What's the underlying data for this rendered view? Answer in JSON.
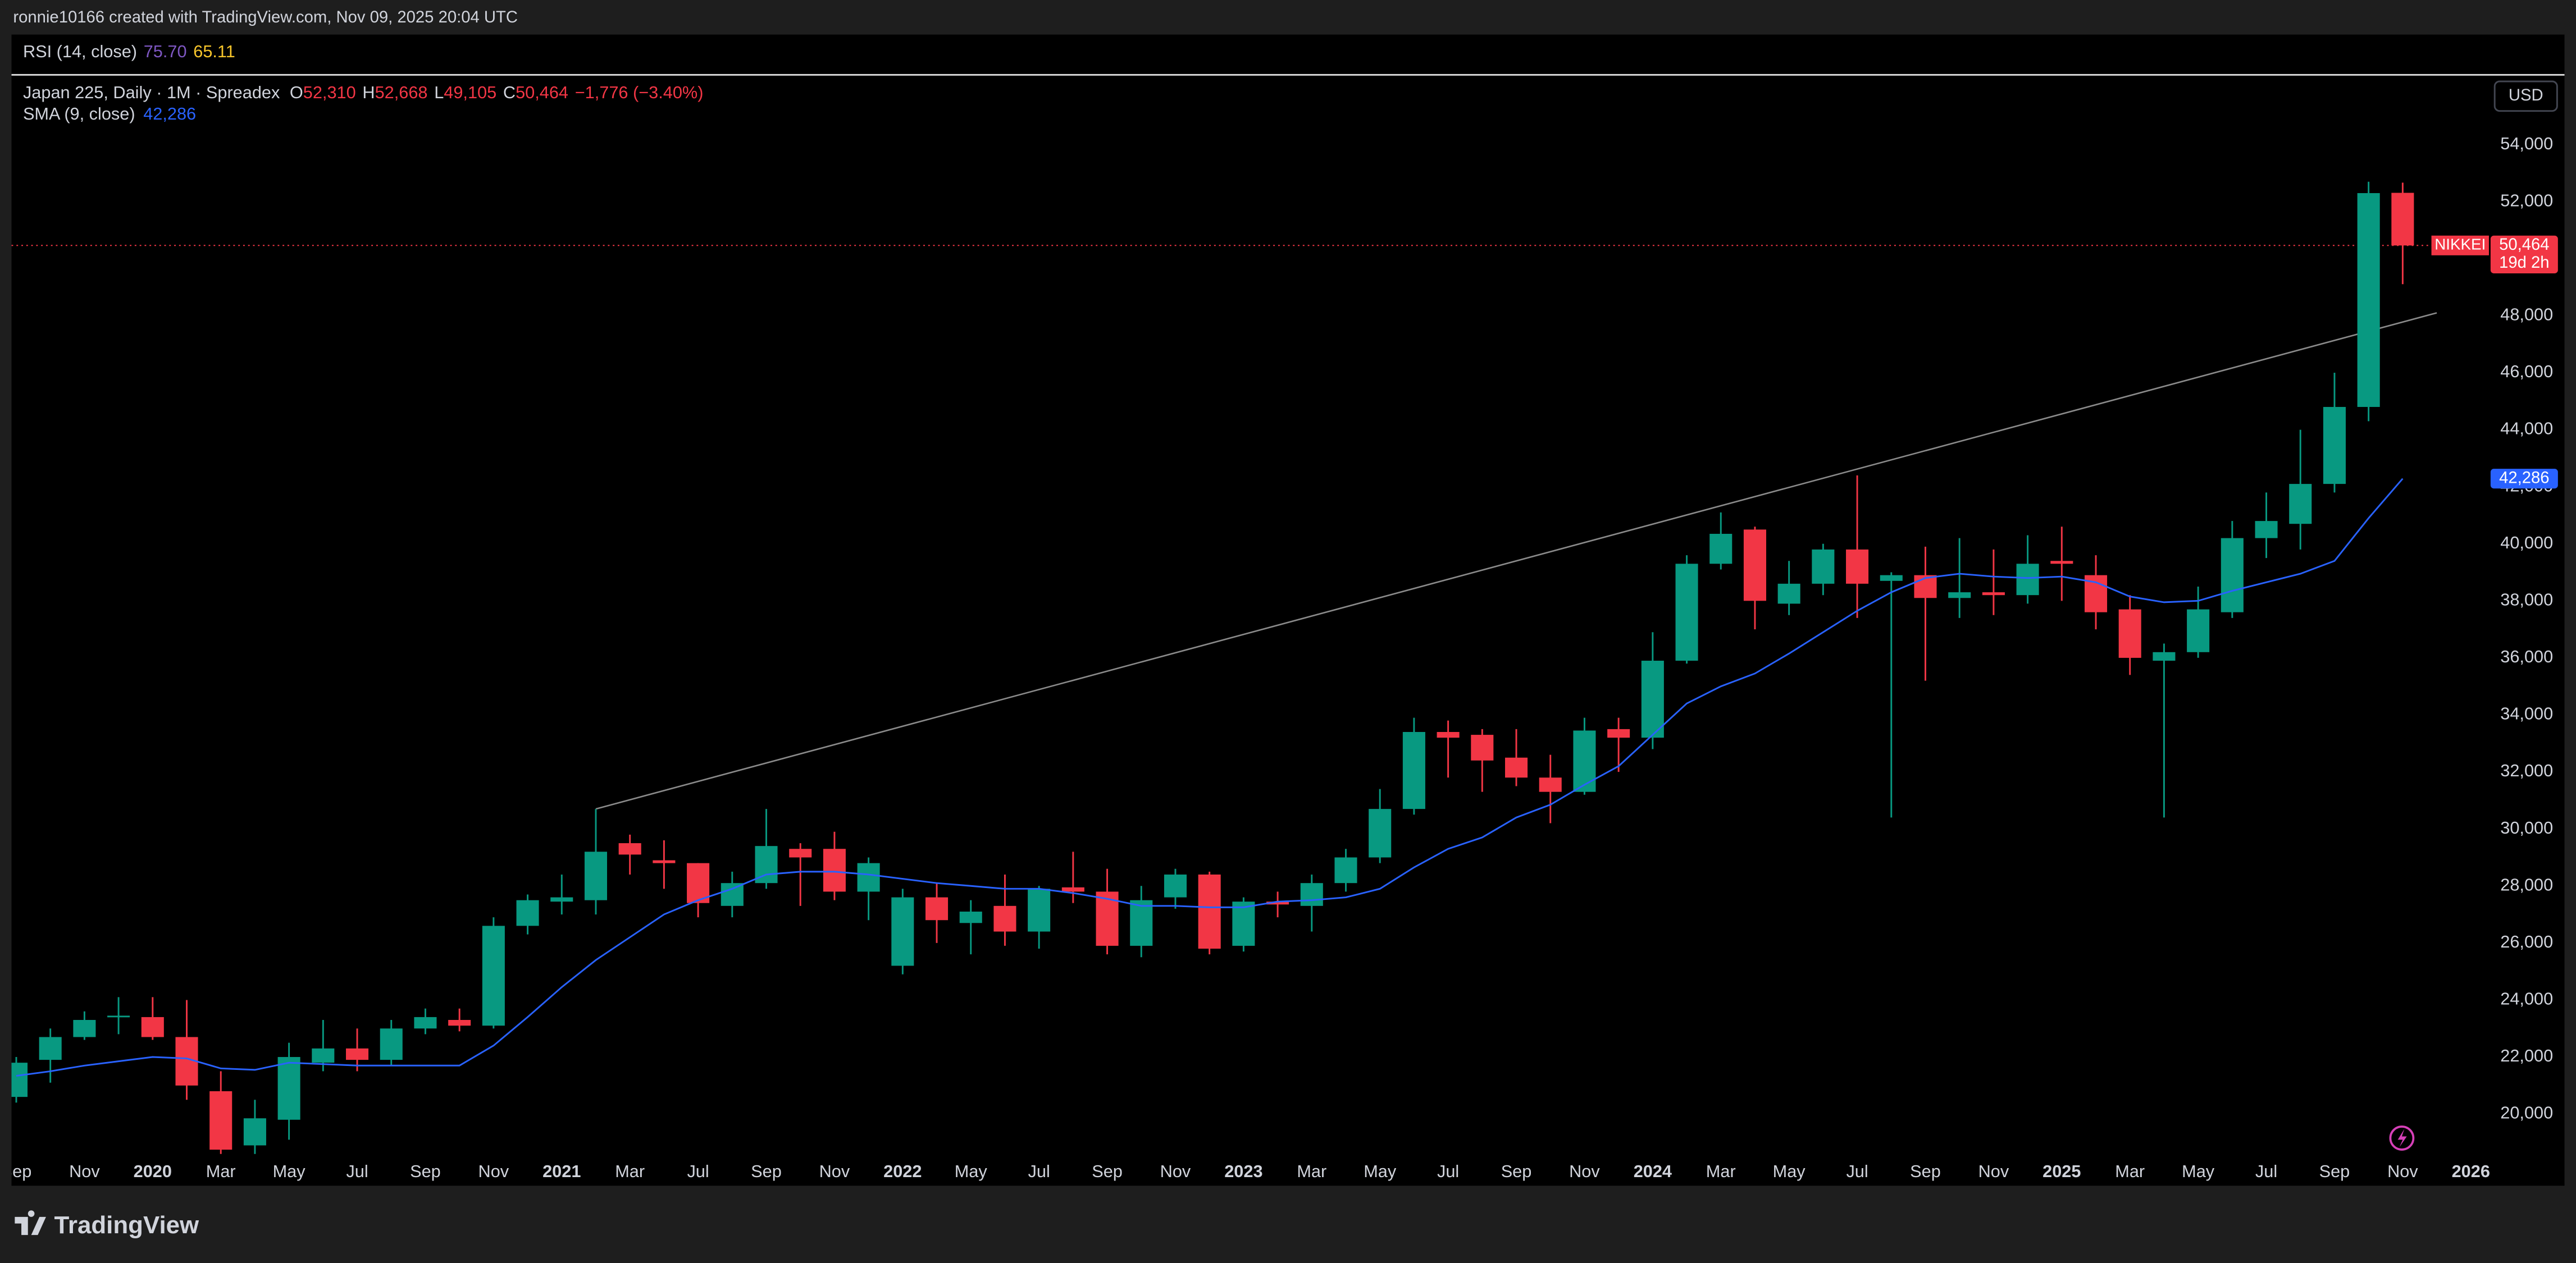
{
  "header": {
    "credit": "ronnie10166 created with TradingView.com, Nov 09, 2025 20:04 UTC"
  },
  "rsi": {
    "name": "RSI (14, close)",
    "value1": "75.70",
    "value2": "65.11"
  },
  "legend": {
    "symbol": "Japan 225, Daily · 1M · Spreadex",
    "o_key": "O",
    "o": "52,310",
    "h_key": "H",
    "h": "52,668",
    "l_key": "L",
    "l": "49,105",
    "c_key": "C",
    "c": "50,464",
    "change": "−1,776 (−3.40%)",
    "sma_name": "SMA (9, close)",
    "sma_value": "42,286"
  },
  "currency": "USD",
  "footer": {
    "brand": "TradingView"
  },
  "chart_data": {
    "type": "candlestick",
    "up_color": "#089981",
    "down_color": "#f23645",
    "grid": false,
    "open": [
      20600,
      21900,
      22700,
      23400,
      23400,
      22700,
      20800,
      18900,
      19800,
      21800,
      22300,
      21900,
      23000,
      23300,
      23100,
      26600,
      27450,
      27500,
      29500,
      28900,
      28800,
      27300,
      28100,
      29300,
      29300,
      27800,
      25200,
      27600,
      26700,
      27300,
      26400,
      27950,
      27800,
      25900,
      27600,
      28400,
      25900,
      27450,
      27300,
      28100,
      29000,
      30700,
      33400,
      33300,
      32500,
      31800,
      31300,
      33500,
      33200,
      35900,
      39300,
      40500,
      37900,
      38600,
      39800,
      38700,
      38900,
      38100,
      38300,
      38200,
      39400,
      38900,
      37700,
      35900,
      36200,
      37600,
      40200,
      40700,
      42100,
      44800,
      52310
    ],
    "high": [
      22000,
      23000,
      23600,
      24100,
      24100,
      24000,
      21500,
      20500,
      22500,
      23300,
      23000,
      23300,
      23700,
      23700,
      26900,
      27700,
      28400,
      30700,
      29800,
      29600,
      28800,
      28500,
      30700,
      29500,
      29900,
      29000,
      27900,
      28100,
      27500,
      28400,
      28000,
      29200,
      28600,
      28000,
      28600,
      28500,
      27600,
      27800,
      28400,
      29300,
      31400,
      33900,
      33800,
      33500,
      33500,
      32600,
      33900,
      33900,
      36900,
      39600,
      41100,
      40600,
      39400,
      40000,
      42400,
      39000,
      39900,
      40200,
      39800,
      40300,
      40600,
      39600,
      38200,
      36500,
      38500,
      40800,
      41800,
      44000,
      46000,
      52700,
      52668
    ],
    "low": [
      20400,
      21100,
      22600,
      22800,
      22600,
      20500,
      18600,
      18600,
      19100,
      21500,
      21500,
      21700,
      22800,
      22900,
      23000,
      26300,
      27000,
      27000,
      28400,
      27900,
      26900,
      26900,
      27900,
      27300,
      27500,
      26800,
      24900,
      26000,
      25600,
      25900,
      25800,
      27400,
      25600,
      25500,
      27200,
      25600,
      25700,
      26900,
      26400,
      27800,
      28800,
      30500,
      31800,
      31300,
      31500,
      30200,
      31200,
      32000,
      32800,
      35800,
      39100,
      37000,
      37500,
      38200,
      37400,
      30400,
      35200,
      37400,
      37500,
      37900,
      38000,
      37000,
      35400,
      30400,
      36000,
      37400,
      39500,
      39800,
      41800,
      44300,
      49105
    ],
    "close": [
      21800,
      22700,
      23300,
      23450,
      22700,
      21000,
      18750,
      19850,
      22000,
      22300,
      21900,
      23000,
      23400,
      23100,
      26600,
      27500,
      27600,
      29200,
      29100,
      28800,
      27400,
      28100,
      29400,
      29000,
      27800,
      28800,
      27600,
      26800,
      27100,
      26400,
      27900,
      27800,
      25900,
      27500,
      28400,
      25800,
      27450,
      27350,
      28100,
      29000,
      30700,
      33400,
      33200,
      32400,
      31800,
      31300,
      33450,
      33200,
      35900,
      39300,
      40350,
      38000,
      38600,
      39800,
      38600,
      38900,
      38100,
      38300,
      38200,
      39300,
      39300,
      37600,
      36000,
      36200,
      37700,
      40200,
      40800,
      42100,
      44800,
      52300,
      50464
    ],
    "sma": {
      "color": "#2962ff",
      "values": [
        21340,
        21500,
        21700,
        21850,
        22000,
        21950,
        21600,
        21550,
        21800,
        21750,
        21700,
        21700,
        21700,
        21700,
        22400,
        23400,
        24450,
        25400,
        26200,
        27000,
        27500,
        27900,
        28400,
        28500,
        28500,
        28400,
        28250,
        28100,
        28000,
        27900,
        27900,
        27750,
        27550,
        27300,
        27300,
        27250,
        27250,
        27450,
        27500,
        27600,
        27900,
        28650,
        29300,
        29700,
        30400,
        30850,
        31550,
        32200,
        33300,
        34400,
        35000,
        35450,
        36150,
        36900,
        37650,
        38300,
        38800,
        38950,
        38850,
        38800,
        38850,
        38650,
        38150,
        37950,
        38000,
        38350,
        38650,
        38950,
        39400,
        40900,
        42286
      ],
      "value_label": "42,286"
    },
    "trend_line": {
      "color": "#8a8a8a",
      "x": [
        17,
        71
      ],
      "values": [
        30700,
        48100
      ]
    },
    "last_price": {
      "name": "NIKKEI",
      "value": 50464,
      "value_label": "50,464",
      "countdown": "19d 2h",
      "color": "#f23645"
    },
    "xlim": [
      -0.14,
      72.53
    ],
    "xticks": [
      {
        "value": 0,
        "label": "Sep"
      },
      {
        "value": 2,
        "label": "Nov"
      },
      {
        "value": 4,
        "label": "2020"
      },
      {
        "value": 6,
        "label": "Mar"
      },
      {
        "value": 8,
        "label": "May"
      },
      {
        "value": 10,
        "label": "Jul"
      },
      {
        "value": 12,
        "label": "Sep"
      },
      {
        "value": 14,
        "label": "Nov"
      },
      {
        "value": 16,
        "label": "2021"
      },
      {
        "value": 18,
        "label": "Mar"
      },
      {
        "value": 20,
        "label": "Jul"
      },
      {
        "value": 22,
        "label": "Sep"
      },
      {
        "value": 24,
        "label": "Nov"
      },
      {
        "value": 26,
        "label": "2022"
      },
      {
        "value": 28,
        "label": "May"
      },
      {
        "value": 30,
        "label": "Jul"
      },
      {
        "value": 32,
        "label": "Sep"
      },
      {
        "value": 34,
        "label": "Nov"
      },
      {
        "value": 36,
        "label": "2023"
      },
      {
        "value": 38,
        "label": "Mar"
      },
      {
        "value": 40,
        "label": "May"
      },
      {
        "value": 42,
        "label": "Jul"
      },
      {
        "value": 44,
        "label": "Sep"
      },
      {
        "value": 46,
        "label": "Nov"
      },
      {
        "value": 48,
        "label": "2024"
      },
      {
        "value": 50,
        "label": "Mar"
      },
      {
        "value": 52,
        "label": "May"
      },
      {
        "value": 54,
        "label": "Jul"
      },
      {
        "value": 56,
        "label": "Sep"
      },
      {
        "value": 58,
        "label": "Nov"
      },
      {
        "value": 60,
        "label": "2025"
      },
      {
        "value": 62,
        "label": "Mar"
      },
      {
        "value": 64,
        "label": "May"
      },
      {
        "value": 66,
        "label": "Jul"
      },
      {
        "value": 68,
        "label": "Sep"
      },
      {
        "value": 70,
        "label": "Nov"
      },
      {
        "value": 72,
        "label": "2026"
      }
    ],
    "ylim": [
      18580,
      56420
    ],
    "yticks": [
      {
        "value": 20000,
        "label": "20,000"
      },
      {
        "value": 22000,
        "label": "22,000"
      },
      {
        "value": 24000,
        "label": "24,000"
      },
      {
        "value": 26000,
        "label": "26,000"
      },
      {
        "value": 28000,
        "label": "28,000"
      },
      {
        "value": 30000,
        "label": "30,000"
      },
      {
        "value": 32000,
        "label": "32,000"
      },
      {
        "value": 34000,
        "label": "34,000"
      },
      {
        "value": 36000,
        "label": "36,000"
      },
      {
        "value": 38000,
        "label": "38,000"
      },
      {
        "value": 40000,
        "label": "40,000"
      },
      {
        "value": 42000,
        "label": "42,000"
      },
      {
        "value": 44000,
        "label": "44,000"
      },
      {
        "value": 46000,
        "label": "46,000"
      },
      {
        "value": 48000,
        "label": "48,000"
      },
      {
        "value": 50000,
        "label": "50,000"
      },
      {
        "value": 52000,
        "label": "52,000"
      },
      {
        "value": 54000,
        "label": "54,000"
      }
    ]
  }
}
